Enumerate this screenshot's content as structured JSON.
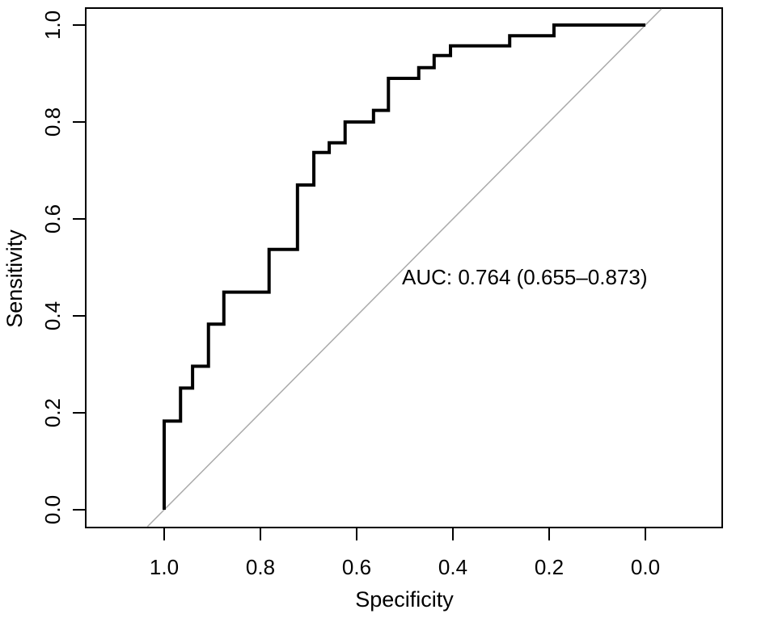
{
  "figure": {
    "background_color": "#ffffff",
    "box_color": "#000000",
    "curve_color": "#000000",
    "chance_line_color": "#aaaaaa"
  },
  "chart_data": {
    "type": "line",
    "subtype": "roc-step-curve",
    "title": "",
    "xlabel": "Specificity",
    "ylabel": "Sensitivity",
    "x_axis_reversed": true,
    "xlim": [
      1.0,
      0.0
    ],
    "ylim": [
      0.0,
      1.0
    ],
    "grid": false,
    "legend_position": "none",
    "x_tick_labels": [
      "1.0",
      "0.8",
      "0.6",
      "0.4",
      "0.2",
      "0.0"
    ],
    "x_tick_values": [
      1.0,
      0.8,
      0.6,
      0.4,
      0.2,
      0.0
    ],
    "y_tick_labels": [
      "0.0",
      "0.2",
      "0.4",
      "0.6",
      "0.8",
      "1.0"
    ],
    "y_tick_values": [
      0.0,
      0.2,
      0.4,
      0.6,
      0.8,
      1.0
    ],
    "annotation": "AUC: 0.764 (0.655–0.873)",
    "auc": 0.764,
    "auc_ci_low": 0.655,
    "auc_ci_high": 0.873,
    "series": [
      {
        "name": "ROC curve",
        "color": "#000000",
        "points_format": [
          "specificity",
          "sensitivity"
        ],
        "points": [
          [
            1.0,
            0.0
          ],
          [
            1.0,
            0.183
          ],
          [
            0.966,
            0.183
          ],
          [
            0.966,
            0.251
          ],
          [
            0.941,
            0.251
          ],
          [
            0.941,
            0.296
          ],
          [
            0.908,
            0.296
          ],
          [
            0.908,
            0.383
          ],
          [
            0.876,
            0.383
          ],
          [
            0.876,
            0.449
          ],
          [
            0.782,
            0.449
          ],
          [
            0.782,
            0.537
          ],
          [
            0.723,
            0.537
          ],
          [
            0.723,
            0.67
          ],
          [
            0.689,
            0.67
          ],
          [
            0.689,
            0.737
          ],
          [
            0.657,
            0.737
          ],
          [
            0.657,
            0.757
          ],
          [
            0.624,
            0.757
          ],
          [
            0.624,
            0.8
          ],
          [
            0.565,
            0.8
          ],
          [
            0.565,
            0.824
          ],
          [
            0.534,
            0.824
          ],
          [
            0.534,
            0.89
          ],
          [
            0.471,
            0.89
          ],
          [
            0.471,
            0.912
          ],
          [
            0.439,
            0.912
          ],
          [
            0.439,
            0.937
          ],
          [
            0.405,
            0.937
          ],
          [
            0.405,
            0.957
          ],
          [
            0.282,
            0.957
          ],
          [
            0.282,
            0.978
          ],
          [
            0.19,
            0.978
          ],
          [
            0.19,
            1.0
          ],
          [
            0.0,
            1.0
          ]
        ]
      },
      {
        "name": "chance diagonal",
        "color": "#aaaaaa",
        "points_format": [
          "specificity",
          "sensitivity"
        ],
        "points": [
          [
            1.0,
            0.0
          ],
          [
            0.0,
            1.0
          ]
        ]
      }
    ]
  }
}
